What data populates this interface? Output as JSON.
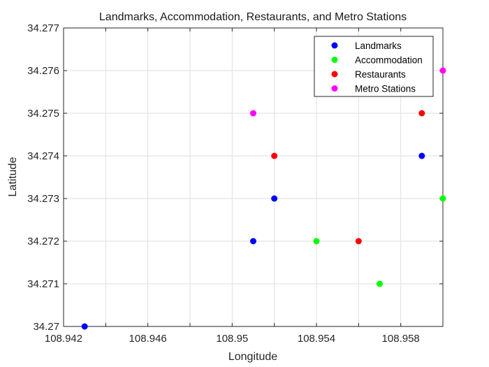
{
  "chart_data": {
    "type": "scatter",
    "title": "Landmarks, Accommodation, Restaurants, and Metro Stations",
    "xlabel": "Longitude",
    "ylabel": "Latitude",
    "xlim": [
      108.942,
      108.96
    ],
    "ylim": [
      34.27,
      34.277
    ],
    "xticks": [
      108.942,
      108.946,
      108.95,
      108.954,
      108.958
    ],
    "xtick_labels": [
      "108.942",
      "108.946",
      "108.95",
      "108.954",
      "108.958"
    ],
    "yticks": [
      34.27,
      34.271,
      34.272,
      34.273,
      34.274,
      34.275,
      34.276,
      34.277
    ],
    "ytick_labels": [
      "34.27",
      "34.271",
      "34.272",
      "34.273",
      "34.274",
      "34.275",
      "34.276",
      "34.277"
    ],
    "grid": true,
    "legend_position": "top-right",
    "series": [
      {
        "name": "Landmarks",
        "color": "#0000ff",
        "points": [
          {
            "x": 108.943,
            "y": 34.27
          },
          {
            "x": 108.951,
            "y": 34.272
          },
          {
            "x": 108.952,
            "y": 34.273
          },
          {
            "x": 108.959,
            "y": 34.274
          }
        ]
      },
      {
        "name": "Accommodation",
        "color": "#00ff00",
        "points": [
          {
            "x": 108.954,
            "y": 34.272
          },
          {
            "x": 108.957,
            "y": 34.271
          },
          {
            "x": 108.96,
            "y": 34.273
          }
        ]
      },
      {
        "name": "Restaurants",
        "color": "#ff0000",
        "points": [
          {
            "x": 108.952,
            "y": 34.274
          },
          {
            "x": 108.956,
            "y": 34.272
          },
          {
            "x": 108.959,
            "y": 34.275
          }
        ]
      },
      {
        "name": "Metro Stations",
        "color": "#ff00ff",
        "points": [
          {
            "x": 108.951,
            "y": 34.275
          },
          {
            "x": 108.96,
            "y": 34.276
          }
        ]
      }
    ]
  }
}
